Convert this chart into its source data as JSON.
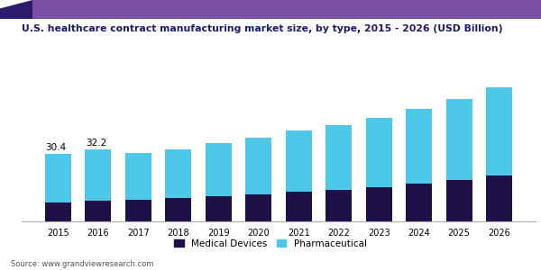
{
  "years": [
    2015,
    2016,
    2017,
    2018,
    2019,
    2020,
    2021,
    2022,
    2023,
    2024,
    2025,
    2026
  ],
  "medical_devices": [
    8.5,
    9.2,
    9.8,
    10.5,
    11.2,
    12.0,
    13.2,
    14.2,
    15.5,
    17.0,
    18.5,
    20.5
  ],
  "pharmaceutical": [
    21.9,
    23.0,
    21.0,
    22.0,
    24.0,
    25.5,
    27.5,
    29.0,
    31.0,
    33.5,
    36.5,
    40.0
  ],
  "annotations": [
    {
      "year_idx": 0,
      "value": "30.4"
    },
    {
      "year_idx": 1,
      "value": "32.2"
    }
  ],
  "medical_color": "#1f1147",
  "pharma_color": "#4dc8e8",
  "title": "U.S. healthcare contract manufacturing market size, by type, 2015 - 2026 (USD Billion)",
  "title_color": "#1a1a6e",
  "legend_labels": [
    "Medical Devices",
    "Pharmaceutical"
  ],
  "source_text": "Source: www.grandviewresearch.com",
  "title_bar_left_color": "#2d1b6e",
  "title_bar_right_color": "#7b4fa6",
  "background_color": "#ffffff",
  "ylim": [
    0,
    68
  ],
  "bar_width": 0.65
}
